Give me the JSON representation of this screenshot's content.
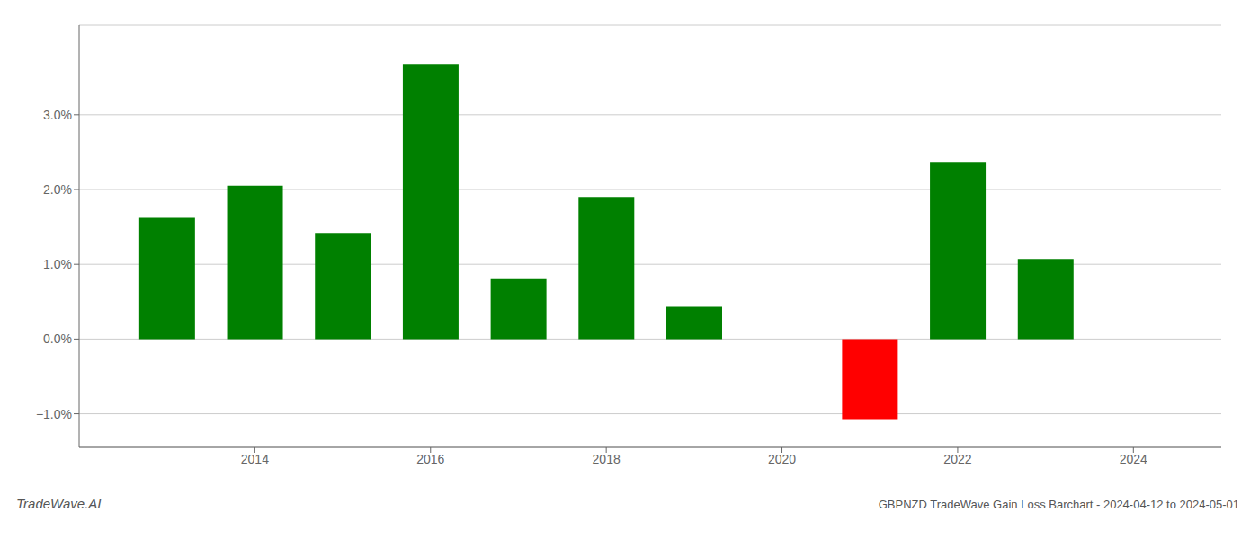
{
  "chart_data": {
    "type": "bar",
    "title": "GBPNZD TradeWave Gain Loss Barchart - 2024-04-12 to 2024-05-01",
    "annotations": [
      "TradeWave.AI"
    ],
    "x": [
      2013,
      2014,
      2015,
      2016,
      2017,
      2018,
      2019,
      2021,
      2022,
      2023
    ],
    "values": [
      1.62,
      2.05,
      1.42,
      3.68,
      0.8,
      1.9,
      0.43,
      -1.07,
      2.37,
      1.07
    ],
    "colors": [
      "#008000",
      "#008000",
      "#008000",
      "#008000",
      "#008000",
      "#008000",
      "#008000",
      "#ff0000",
      "#008000",
      "#008000"
    ],
    "xlim": [
      2012.0,
      2025.0
    ],
    "ylim": [
      -1.45,
      4.2
    ],
    "xticks": [
      2014,
      2016,
      2018,
      2020,
      2022,
      2024
    ],
    "yticks": [
      {
        "value": -1.0,
        "label": "−1.0%"
      },
      {
        "value": 0.0,
        "label": "0.0%"
      },
      {
        "value": 1.0,
        "label": "1.0%"
      },
      {
        "value": 2.0,
        "label": "2.0%"
      },
      {
        "value": 3.0,
        "label": "3.0%"
      }
    ],
    "grid": true
  }
}
